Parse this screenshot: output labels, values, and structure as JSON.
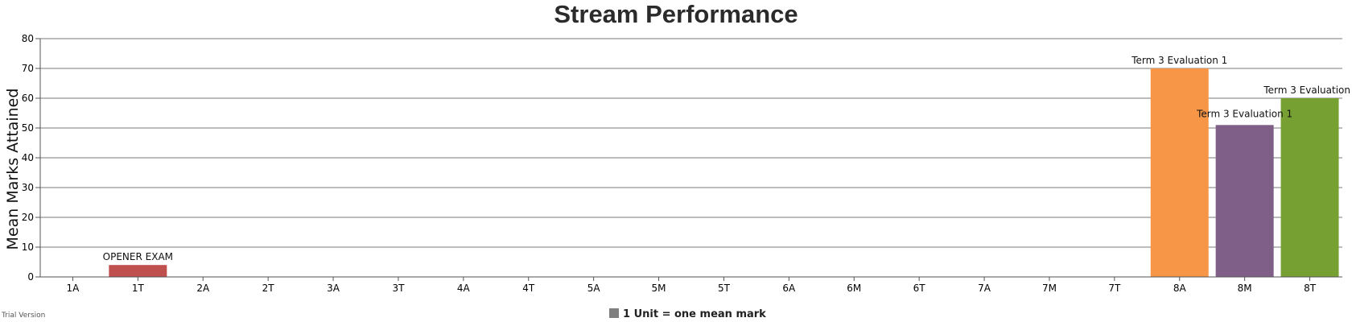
{
  "chart_data": {
    "type": "bar",
    "title": "Stream Performance",
    "xlabel": "",
    "ylabel": "Mean Marks Attained",
    "ylim": [
      0,
      80
    ],
    "yticks": [
      0,
      10,
      20,
      30,
      40,
      50,
      60,
      70,
      80
    ],
    "grid": true,
    "categories": [
      "1A",
      "1T",
      "2A",
      "2T",
      "3A",
      "3T",
      "4A",
      "4T",
      "5A",
      "5M",
      "5T",
      "6A",
      "6M",
      "6T",
      "7A",
      "7M",
      "7T",
      "8A",
      "8M",
      "8T"
    ],
    "values": [
      0,
      4,
      0,
      0,
      0,
      0,
      0,
      0,
      0,
      0,
      0,
      0,
      0,
      0,
      0,
      0,
      0,
      70,
      51,
      60
    ],
    "bar_labels": [
      "",
      "OPENER EXAM",
      "",
      "",
      "",
      "",
      "",
      "",
      "",
      "",
      "",
      "",
      "",
      "",
      "",
      "",
      "",
      "Term 3 Evaluation 1",
      "Term 3 Evaluation 1",
      "Term 3 Evaluation"
    ],
    "bar_colors": [
      "#c0504e",
      "#c0504e",
      "#c0504e",
      "#c0504e",
      "#c0504e",
      "#c0504e",
      "#c0504e",
      "#c0504e",
      "#c0504e",
      "#c0504e",
      "#c0504e",
      "#c0504e",
      "#c0504e",
      "#c0504e",
      "#c0504e",
      "#c0504e",
      "#c0504e",
      "#f79647",
      "#7f5f87",
      "#77a033"
    ],
    "legend": {
      "label": "1 Unit = one mean mark",
      "color": "#7f7f7f",
      "placement": "bottom-center"
    }
  },
  "footer": {
    "trial_text": "Trial Version"
  }
}
